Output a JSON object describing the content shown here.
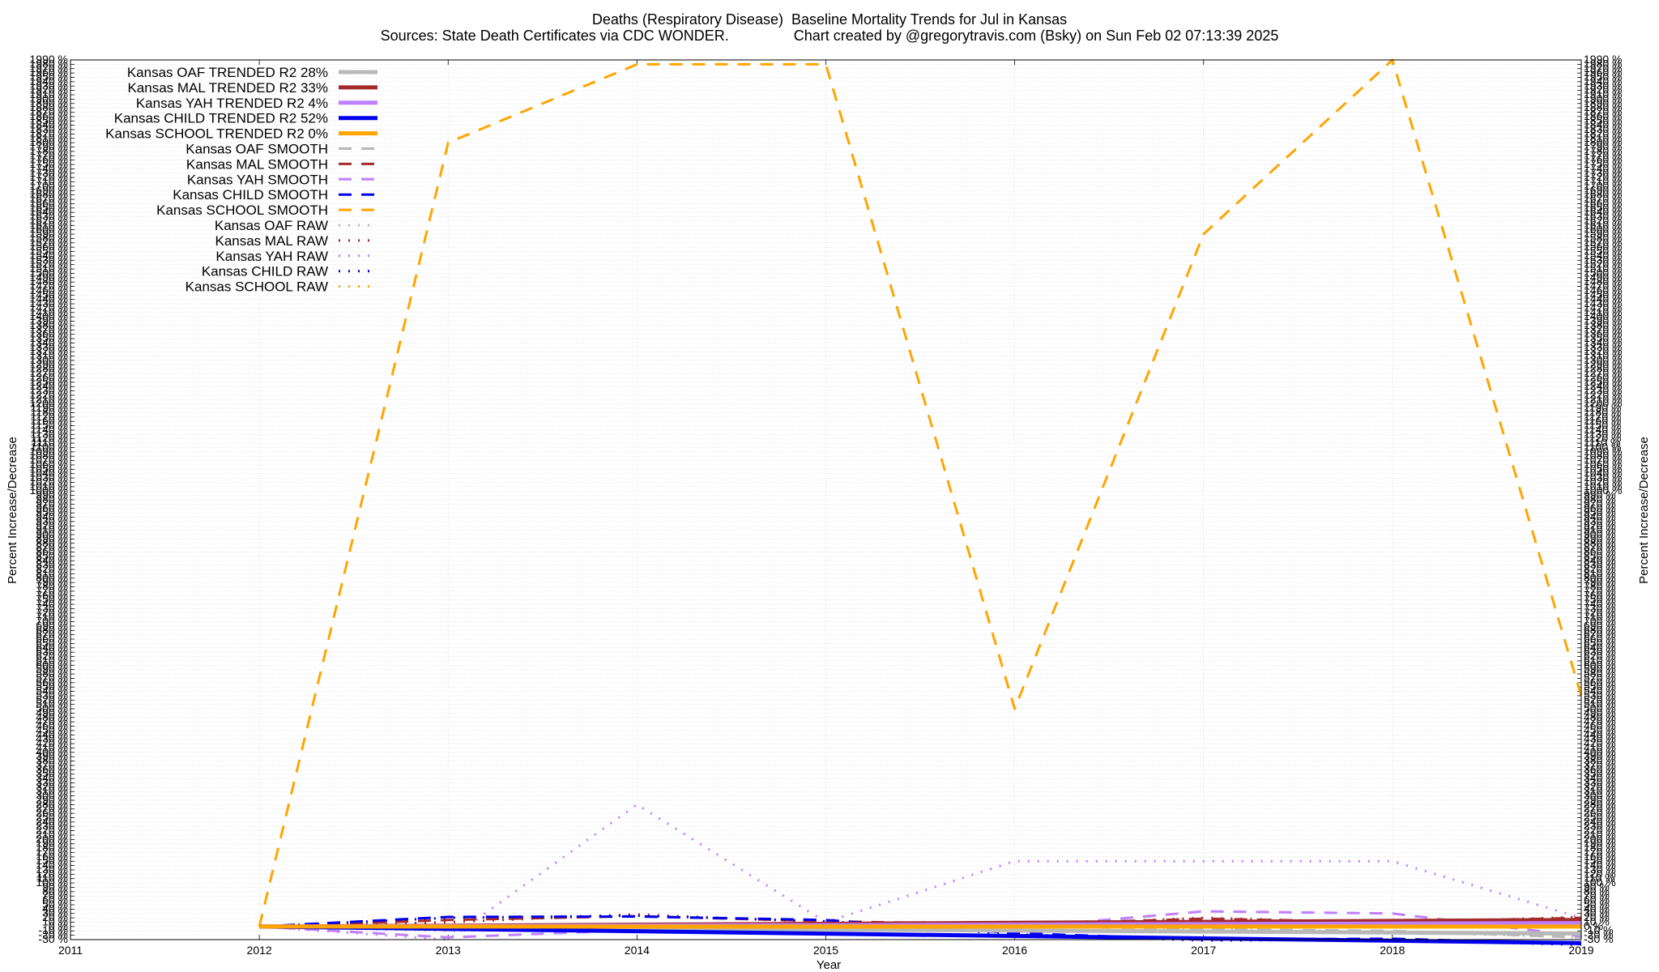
{
  "title_line1": "Deaths (Respiratory Disease)  Baseline Mortality Trends for Jul in Kansas",
  "title_line2": "Sources: State Death Certificates via CDC WONDER.                Chart created by @gregorytravis.com (Bsky) on Sun Feb 02 07:13:39 2025",
  "chart_data": {
    "type": "line",
    "xlabel": "Year",
    "ylabel": "Percent Increase/Decrease",
    "ylabel_right": "Percent Increase/Decrease",
    "xlim": [
      2011,
      2019
    ],
    "ylim": [
      -30,
      1990
    ],
    "x_ticks": [
      "2011",
      "2012",
      "2013",
      "2014",
      "2015",
      "2016",
      "2017",
      "2018",
      "2019"
    ],
    "y_tick_step": 10,
    "y_tick_suffix": " %",
    "grid": true,
    "legend_position": "top-left",
    "series": [
      {
        "name": "Kansas OAF TRENDED R2  28%",
        "style": "solid",
        "color": "#b8b8b8",
        "width": 5,
        "x": [
          2012,
          2019
        ],
        "y": [
          0,
          -16
        ]
      },
      {
        "name": "Kansas MAL TRENDED R2  33%",
        "style": "solid",
        "color": "#a52a2a",
        "width": 5,
        "x": [
          2012,
          2019
        ],
        "y": [
          0,
          15
        ]
      },
      {
        "name": "Kansas YAH TRENDED R2   4%",
        "style": "solid",
        "color": "#bf7fff",
        "width": 5,
        "x": [
          2012,
          2019
        ],
        "y": [
          0,
          8
        ]
      },
      {
        "name": "Kansas CHILD TRENDED R2  52%",
        "style": "solid",
        "color": "#0000ee",
        "width": 5,
        "x": [
          2012,
          2019
        ],
        "y": [
          0,
          -38
        ]
      },
      {
        "name": "Kansas SCHOOL TRENDED R2   0%",
        "style": "solid",
        "color": "#ffa500",
        "width": 5,
        "x": [
          2012,
          2019
        ],
        "y": [
          0,
          0
        ]
      },
      {
        "name": "Kansas OAF SMOOTH",
        "style": "dashed",
        "color": "#b8b8b8",
        "width": 3,
        "x": [
          2012,
          2013,
          2014,
          2015,
          2016,
          2017,
          2018,
          2019
        ],
        "y": [
          0,
          -8,
          -3,
          -2,
          -10,
          -6,
          -10,
          -25
        ]
      },
      {
        "name": "Kansas MAL SMOOTH",
        "style": "dashed",
        "color": "#a52a2a",
        "width": 3,
        "x": [
          2012,
          2013,
          2014,
          2015,
          2016,
          2017,
          2018,
          2019
        ],
        "y": [
          0,
          15,
          24,
          12,
          5,
          18,
          10,
          20
        ]
      },
      {
        "name": "Kansas YAH SMOOTH",
        "style": "dashed",
        "color": "#bf7fff",
        "width": 3,
        "x": [
          2012,
          2013,
          2014,
          2015,
          2016,
          2017,
          2018,
          2019
        ],
        "y": [
          0,
          -25,
          -8,
          -5,
          -3,
          35,
          30,
          -22
        ]
      },
      {
        "name": "Kansas CHILD SMOOTH",
        "style": "dashed",
        "color": "#0000ee",
        "width": 3,
        "x": [
          2012,
          2013,
          2014,
          2015,
          2016,
          2017,
          2018,
          2019
        ],
        "y": [
          0,
          22,
          23,
          15,
          -15,
          -30,
          -28,
          -40
        ]
      },
      {
        "name": "Kansas SCHOOL SMOOTH",
        "style": "dashed",
        "color": "#ffa500",
        "width": 3,
        "x": [
          2012,
          2013,
          2014,
          2015,
          2016,
          2017,
          2018,
          2019
        ],
        "y": [
          0,
          1800,
          1980,
          1980,
          500,
          1590,
          1990,
          530
        ]
      },
      {
        "name": "Kansas OAF RAW",
        "style": "dotted",
        "color": "#b8b8b8",
        "width": 3,
        "x": [
          2012,
          2013,
          2014,
          2015,
          2016,
          2017,
          2018,
          2019
        ],
        "y": [
          0,
          -10,
          -5,
          0,
          -12,
          -6,
          -12,
          -25
        ]
      },
      {
        "name": "Kansas MAL RAW",
        "style": "dotted",
        "color": "#a52a2a",
        "width": 3,
        "x": [
          2012,
          2013,
          2014,
          2015,
          2016,
          2017,
          2018,
          2019
        ],
        "y": [
          0,
          10,
          28,
          10,
          2,
          20,
          8,
          22
        ]
      },
      {
        "name": "Kansas YAH RAW",
        "style": "dotted",
        "color": "#bf7fff",
        "width": 3,
        "x": [
          2012,
          2013,
          2014,
          2015,
          2016,
          2017,
          2018,
          2019
        ],
        "y": [
          0,
          -30,
          280,
          10,
          150,
          150,
          150,
          20
        ]
      },
      {
        "name": "Kansas CHILD RAW",
        "style": "dotted",
        "color": "#0000ee",
        "width": 3,
        "x": [
          2012,
          2013,
          2014,
          2015,
          2016,
          2017,
          2018,
          2019
        ],
        "y": [
          0,
          20,
          25,
          12,
          -18,
          -32,
          -30,
          -42
        ]
      },
      {
        "name": "Kansas SCHOOL RAW",
        "style": "dotted",
        "color": "#ffa500",
        "width": 3,
        "x": [
          2012,
          2013,
          2014,
          2015,
          2016,
          2017,
          2018,
          2019
        ],
        "y": [
          0,
          0,
          0,
          0,
          0,
          0,
          0,
          0
        ]
      }
    ]
  }
}
